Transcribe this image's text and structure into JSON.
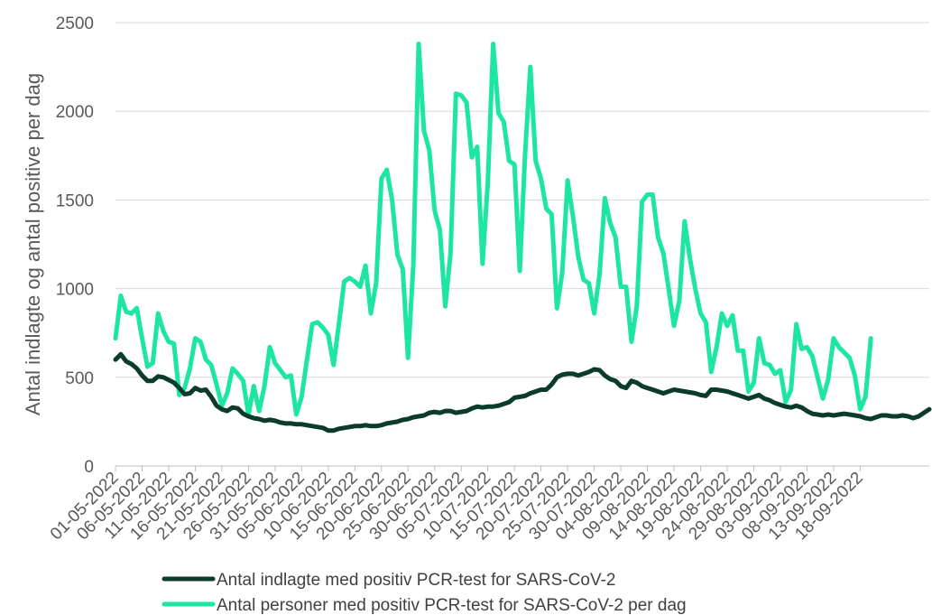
{
  "chart_data": {
    "type": "line",
    "title": "",
    "xlabel": "",
    "ylabel": "Antal indlagte og antal positive per dag",
    "ylim": [
      0,
      2500
    ],
    "yticks": [
      0,
      500,
      1000,
      1500,
      2000,
      2500
    ],
    "grid": true,
    "legend_position": "bottom",
    "x_tick_labels": [
      "01-05-2022",
      "06-05-2022",
      "11-05-2022",
      "16-05-2022",
      "21-05-2022",
      "26-05-2022",
      "31-05-2022",
      "05-06-2022",
      "10-06-2022",
      "15-06-2022",
      "20-06-2022",
      "25-06-2022",
      "30-06-2022",
      "05-07-2022",
      "10-07-2022",
      "15-07-2022",
      "20-07-2022",
      "25-07-2022",
      "30-07-2022",
      "04-08-2022",
      "09-08-2022",
      "14-08-2022",
      "19-08-2022",
      "24-08-2022",
      "29-08-2022",
      "03-09-2022",
      "08-09-2022",
      "13-09-2022",
      "18-09-2022"
    ],
    "x_start": "01-05-2022",
    "series": [
      {
        "name": "Antal indlagte med positiv PCR-test for SARS-CoV-2",
        "color": "#0b3b2c",
        "values": [
          600,
          630,
          590,
          575,
          550,
          510,
          480,
          480,
          505,
          500,
          485,
          470,
          440,
          405,
          410,
          440,
          425,
          430,
          390,
          340,
          320,
          310,
          330,
          325,
          295,
          280,
          270,
          265,
          255,
          260,
          255,
          245,
          240,
          240,
          235,
          235,
          230,
          225,
          220,
          215,
          200,
          200,
          210,
          215,
          220,
          225,
          225,
          230,
          225,
          225,
          230,
          240,
          245,
          250,
          260,
          265,
          275,
          280,
          285,
          300,
          305,
          300,
          310,
          310,
          300,
          305,
          310,
          325,
          335,
          330,
          335,
          335,
          340,
          350,
          360,
          385,
          390,
          395,
          410,
          420,
          430,
          430,
          460,
          500,
          515,
          520,
          520,
          510,
          520,
          530,
          545,
          540,
          510,
          490,
          480,
          450,
          440,
          480,
          470,
          450,
          440,
          430,
          420,
          410,
          420,
          430,
          425,
          420,
          415,
          410,
          400,
          395,
          430,
          430,
          425,
          420,
          410,
          400,
          390,
          380,
          390,
          400,
          380,
          370,
          355,
          345,
          335,
          330,
          340,
          330,
          310,
          295,
          290,
          285,
          290,
          285,
          290,
          295,
          290,
          285,
          280,
          270,
          265,
          275,
          285,
          285,
          280,
          280,
          285,
          280,
          270,
          280,
          300,
          320
        ]
      },
      {
        "name": "Antal personer med positiv PCR-test for SARS-CoV-2 per dag",
        "color": "#1de6a0",
        "values": [
          720,
          960,
          870,
          860,
          890,
          720,
          560,
          580,
          860,
          760,
          700,
          690,
          400,
          440,
          550,
          720,
          700,
          600,
          570,
          460,
          340,
          410,
          550,
          520,
          480,
          290,
          450,
          310,
          450,
          670,
          580,
          540,
          500,
          510,
          290,
          390,
          600,
          800,
          810,
          780,
          740,
          570,
          800,
          1040,
          1060,
          1040,
          1010,
          1130,
          860,
          1030,
          1620,
          1670,
          1500,
          1190,
          1110,
          610,
          1130,
          2380,
          1890,
          1780,
          1440,
          1330,
          900,
          1200,
          2100,
          2090,
          2050,
          1740,
          1800,
          1140,
          1600,
          2380,
          1990,
          1940,
          1720,
          1700,
          1100,
          1750,
          2250,
          1720,
          1620,
          1450,
          1420,
          890,
          1090,
          1610,
          1410,
          1180,
          1050,
          1030,
          860,
          1080,
          1510,
          1370,
          1290,
          1010,
          1010,
          700,
          900,
          1490,
          1530,
          1530,
          1290,
          1200,
          1000,
          790,
          930,
          1380,
          1170,
          1000,
          860,
          810,
          530,
          670,
          860,
          790,
          850,
          650,
          650,
          420,
          470,
          720,
          580,
          570,
          520,
          540,
          360,
          430,
          800,
          660,
          670,
          620,
          500,
          380,
          490,
          720,
          670,
          640,
          610,
          510,
          320,
          390,
          720
        ]
      }
    ]
  }
}
